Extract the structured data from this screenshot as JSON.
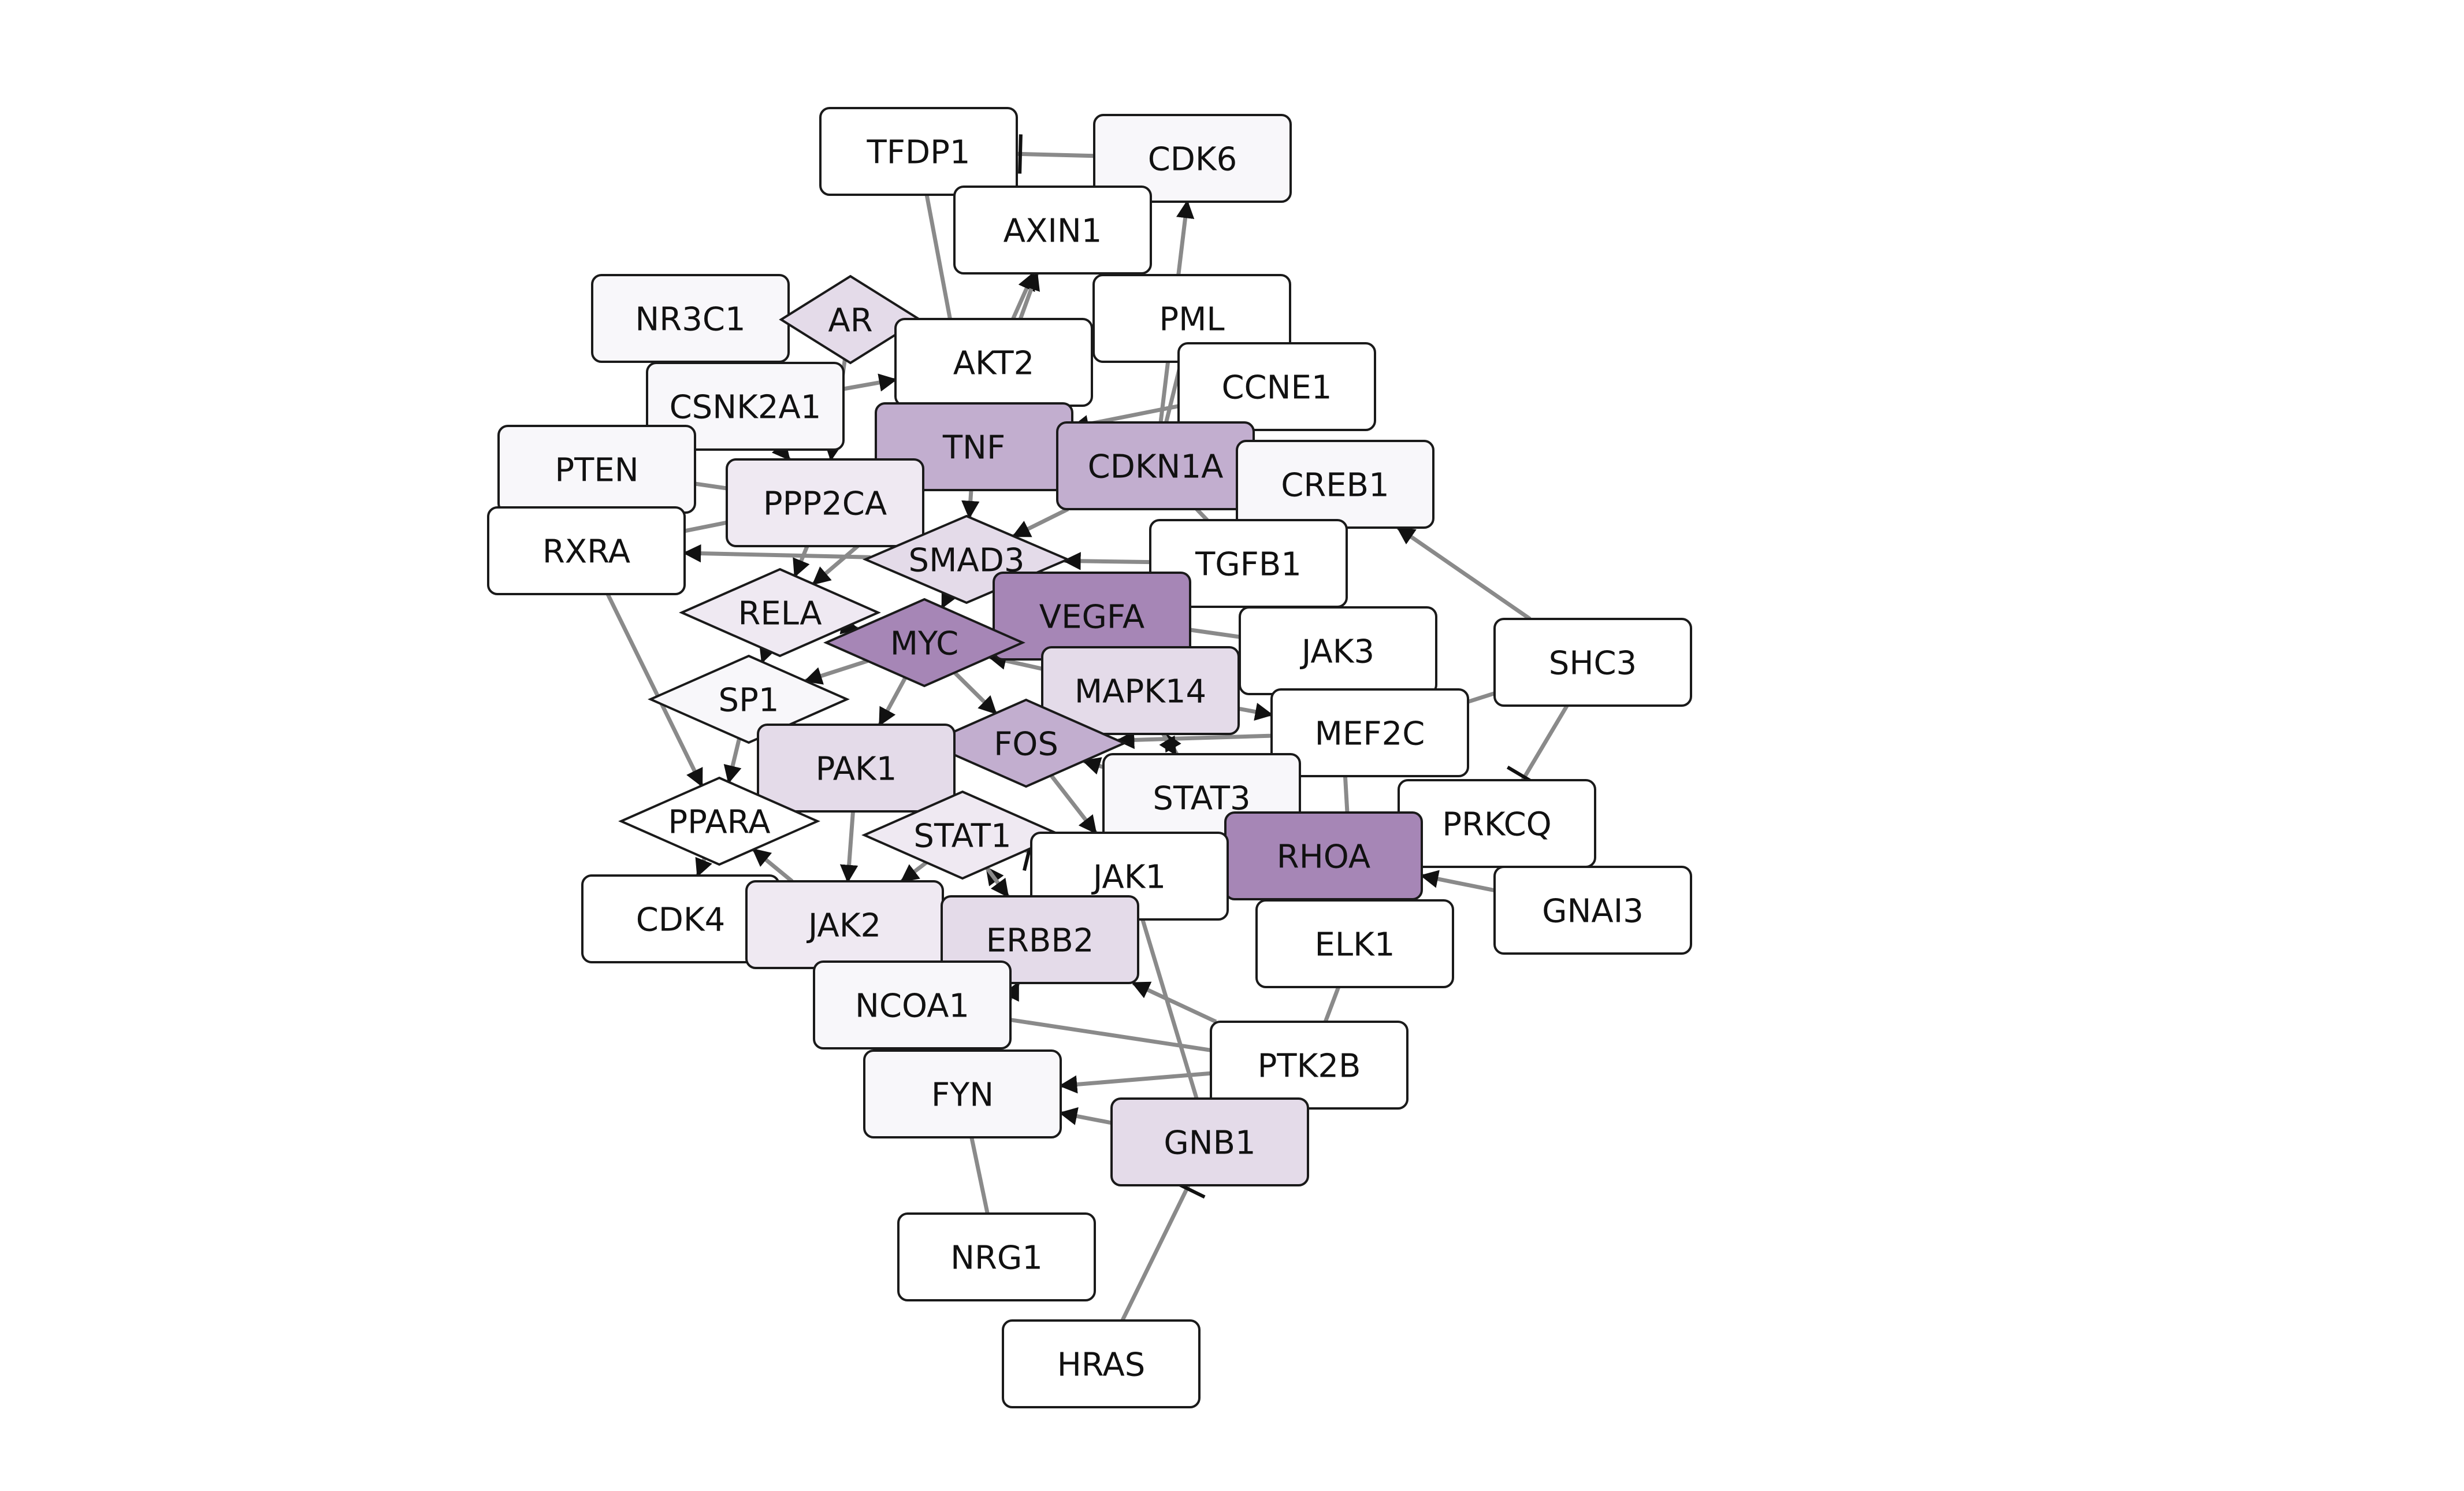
{
  "network": {
    "colors": {
      "background": "#ffffff",
      "edge": "#8a8a8a",
      "border": "#1a1a1a",
      "arrow": "#111111",
      "shade_0": "#ffffff",
      "shade_1": "#f8f7fa",
      "shade_2": "#efe9f2",
      "shade_3": "#e4dbe9",
      "shade_4": "#c2aecf",
      "shade_5": "#a686b6"
    },
    "nodes": [
      {
        "id": "TFDP1",
        "label": "TFDP1",
        "shape": "rect",
        "shade": 0
      },
      {
        "id": "CDK6",
        "label": "CDK6",
        "shape": "rect",
        "shade": 1
      },
      {
        "id": "AXIN1",
        "label": "AXIN1",
        "shape": "rect",
        "shade": 0
      },
      {
        "id": "NR3C1",
        "label": "NR3C1",
        "shape": "rect",
        "shade": 1
      },
      {
        "id": "AR",
        "label": "AR",
        "shape": "diamond",
        "shade": 3
      },
      {
        "id": "PML",
        "label": "PML",
        "shape": "rect",
        "shade": 0
      },
      {
        "id": "AKT2",
        "label": "AKT2",
        "shape": "rect",
        "shade": 0
      },
      {
        "id": "CCNE1",
        "label": "CCNE1",
        "shape": "rect",
        "shade": 0
      },
      {
        "id": "CSNK2A1",
        "label": "CSNK2A1",
        "shape": "rect",
        "shade": 1
      },
      {
        "id": "TNF",
        "label": "TNF",
        "shape": "rect",
        "shade": 4
      },
      {
        "id": "CDKN1A",
        "label": "CDKN1A",
        "shape": "rect",
        "shade": 4
      },
      {
        "id": "PTEN",
        "label": "PTEN",
        "shape": "rect",
        "shade": 1
      },
      {
        "id": "CREB1",
        "label": "CREB1",
        "shape": "rect",
        "shade": 1
      },
      {
        "id": "PPP2CA",
        "label": "PPP2CA",
        "shape": "rect",
        "shade": 2
      },
      {
        "id": "RXRA",
        "label": "RXRA",
        "shape": "rect",
        "shade": 0
      },
      {
        "id": "SMAD3",
        "label": "SMAD3",
        "shape": "diamond",
        "shade": 3
      },
      {
        "id": "TGFB1",
        "label": "TGFB1",
        "shape": "rect",
        "shade": 0
      },
      {
        "id": "RELA",
        "label": "RELA",
        "shape": "diamond",
        "shade": 2
      },
      {
        "id": "VEGFA",
        "label": "VEGFA",
        "shape": "rect",
        "shade": 5
      },
      {
        "id": "MYC",
        "label": "MYC",
        "shape": "diamond",
        "shade": 5
      },
      {
        "id": "JAK3",
        "label": "JAK3",
        "shape": "rect",
        "shade": 0
      },
      {
        "id": "SHC3",
        "label": "SHC3",
        "shape": "rect",
        "shade": 0
      },
      {
        "id": "SP1",
        "label": "SP1",
        "shape": "diamond",
        "shade": 1
      },
      {
        "id": "MAPK14",
        "label": "MAPK14",
        "shape": "rect",
        "shade": 3
      },
      {
        "id": "FOS",
        "label": "FOS",
        "shape": "diamond",
        "shade": 4
      },
      {
        "id": "MEF2C",
        "label": "MEF2C",
        "shape": "rect",
        "shade": 0
      },
      {
        "id": "PAK1",
        "label": "PAK1",
        "shape": "rect",
        "shade": 3
      },
      {
        "id": "PPARA",
        "label": "PPARA",
        "shape": "diamond",
        "shade": 0
      },
      {
        "id": "STAT3",
        "label": "STAT3",
        "shape": "rect",
        "shade": 1
      },
      {
        "id": "PRKCQ",
        "label": "PRKCQ",
        "shape": "rect",
        "shade": 0
      },
      {
        "id": "STAT1",
        "label": "STAT1",
        "shape": "diamond",
        "shade": 2
      },
      {
        "id": "RHOA",
        "label": "RHOA",
        "shape": "rect",
        "shade": 5
      },
      {
        "id": "JAK1",
        "label": "JAK1",
        "shape": "rect",
        "shade": 0
      },
      {
        "id": "CDK4",
        "label": "CDK4",
        "shape": "rect",
        "shade": 0
      },
      {
        "id": "JAK2",
        "label": "JAK2",
        "shape": "rect",
        "shade": 2
      },
      {
        "id": "ERBB2",
        "label": "ERBB2",
        "shape": "rect",
        "shade": 3
      },
      {
        "id": "GNAI3",
        "label": "GNAI3",
        "shape": "rect",
        "shade": 0
      },
      {
        "id": "ELK1",
        "label": "ELK1",
        "shape": "rect",
        "shade": 0
      },
      {
        "id": "NCOA1",
        "label": "NCOA1",
        "shape": "rect",
        "shade": 1
      },
      {
        "id": "PTK2B",
        "label": "PTK2B",
        "shape": "rect",
        "shade": 0
      },
      {
        "id": "FYN",
        "label": "FYN",
        "shape": "rect",
        "shade": 1
      },
      {
        "id": "GNB1",
        "label": "GNB1",
        "shape": "rect",
        "shade": 3
      },
      {
        "id": "NRG1",
        "label": "NRG1",
        "shape": "rect",
        "shade": 0
      },
      {
        "id": "HRAS",
        "label": "HRAS",
        "shape": "rect",
        "shade": 0
      }
    ],
    "edges": [
      {
        "source": "CDK6",
        "target": "TFDP1",
        "type": "inhibition"
      },
      {
        "source": "AXIN1",
        "target": "TFDP1",
        "type": "activation"
      },
      {
        "source": "AKT2",
        "target": "AXIN1",
        "type": "activation"
      },
      {
        "source": "PML",
        "target": "AXIN1",
        "type": "activation"
      },
      {
        "source": "CDKN1A",
        "target": "CDK6",
        "type": "activation"
      },
      {
        "source": "TNF",
        "target": "AXIN1",
        "type": "activation"
      },
      {
        "source": "AR",
        "target": "AKT2",
        "type": "activation"
      },
      {
        "source": "NR3C1",
        "target": "AR",
        "type": "line"
      },
      {
        "source": "CSNK2A1",
        "target": "AKT2",
        "type": "activation"
      },
      {
        "source": "PPP2CA",
        "target": "AKT2",
        "type": "activation"
      },
      {
        "source": "PTEN",
        "target": "PPP2CA",
        "type": "line"
      },
      {
        "source": "AKT2",
        "target": "TNF",
        "type": "line"
      },
      {
        "source": "PML",
        "target": "CDKN1A",
        "type": "line"
      },
      {
        "source": "CCNE1",
        "target": "CDKN1A",
        "type": "line"
      },
      {
        "source": "CREB1",
        "target": "CDKN1A",
        "type": "line"
      },
      {
        "source": "TNF",
        "target": "SMAD3",
        "type": "activation"
      },
      {
        "source": "CDKN1A",
        "target": "SMAD3",
        "type": "activation"
      },
      {
        "source": "TGFB1",
        "target": "SMAD3",
        "type": "activation"
      },
      {
        "source": "SMAD3",
        "target": "RXRA",
        "type": "activation"
      },
      {
        "source": "PPP2CA",
        "target": "RXRA",
        "type": "line"
      },
      {
        "source": "RELA",
        "target": "MYC",
        "type": "activation"
      },
      {
        "source": "SMAD3",
        "target": "MYC",
        "type": "activation"
      },
      {
        "source": "VEGFA",
        "target": "MYC",
        "type": "activation"
      },
      {
        "source": "MAPK14",
        "target": "MYC",
        "type": "activation"
      },
      {
        "source": "MYC",
        "target": "SP1",
        "type": "activation"
      },
      {
        "source": "JAK3",
        "target": "VEGFA",
        "type": "line"
      },
      {
        "source": "SHC3",
        "target": "CREB1",
        "type": "activation"
      },
      {
        "source": "SHC3",
        "target": "MEF2C",
        "type": "line"
      },
      {
        "source": "SHC3",
        "target": "PRKCQ",
        "type": "inhibition"
      },
      {
        "source": "MEF2C",
        "target": "FOS",
        "type": "activation"
      },
      {
        "source": "STAT3",
        "target": "FOS",
        "type": "activation"
      },
      {
        "source": "FOS",
        "target": "PAK1",
        "type": "activation"
      },
      {
        "source": "RXRA",
        "target": "PPARA",
        "type": "activation"
      },
      {
        "source": "SP1",
        "target": "PAK1",
        "type": "inhibition"
      },
      {
        "source": "PAK1",
        "target": "JAK2",
        "type": "activation"
      },
      {
        "source": "STAT1",
        "target": "JAK2",
        "type": "activation"
      },
      {
        "source": "JAK1",
        "target": "STAT1",
        "type": "inhibition"
      },
      {
        "source": "RHOA",
        "target": "STAT3",
        "type": "activation"
      },
      {
        "source": "PRKCQ",
        "target": "RHOA",
        "type": "line"
      },
      {
        "source": "GNAI3",
        "target": "RHOA",
        "type": "activation"
      },
      {
        "source": "ELK1",
        "target": "RHOA",
        "type": "line"
      },
      {
        "source": "PPARA",
        "target": "CDK4",
        "type": "activation"
      },
      {
        "source": "JAK2",
        "target": "ERBB2",
        "type": "line"
      },
      {
        "source": "PTK2B",
        "target": "ERBB2",
        "type": "activation"
      },
      {
        "source": "PTK2B",
        "target": "NCOA1",
        "type": "line"
      },
      {
        "source": "PTK2B",
        "target": "FYN",
        "type": "activation"
      },
      {
        "source": "GNB1",
        "target": "FYN",
        "type": "activation"
      },
      {
        "source": "GNB1",
        "target": "JAK1",
        "type": "line"
      },
      {
        "source": "NRG1",
        "target": "FYN",
        "type": "line"
      },
      {
        "source": "HRAS",
        "target": "GNB1",
        "type": "inhibition"
      },
      {
        "source": "PTK2B",
        "target": "ELK1",
        "type": "line"
      },
      {
        "source": "STAT3",
        "target": "MAPK14",
        "type": "activation"
      },
      {
        "source": "JAK3",
        "target": "MAPK14",
        "type": "activation"
      },
      {
        "source": "TGFB1",
        "target": "VEGFA",
        "type": "activation"
      },
      {
        "source": "RELA",
        "target": "SP1",
        "type": "activation"
      },
      {
        "source": "PAK1",
        "target": "STAT1",
        "type": "activation"
      },
      {
        "source": "ERBB2",
        "target": "STAT1",
        "type": "activation"
      },
      {
        "source": "JAK2",
        "target": "PPARA",
        "type": "activation"
      },
      {
        "source": "CSNK2A1",
        "target": "PPP2CA",
        "type": "activation"
      },
      {
        "source": "AR",
        "target": "PPP2CA",
        "type": "activation"
      },
      {
        "source": "TNF",
        "target": "RELA",
        "type": "activation"
      },
      {
        "source": "MYC",
        "target": "FOS",
        "type": "activation"
      },
      {
        "source": "VEGFA",
        "target": "STAT3",
        "type": "activation"
      },
      {
        "source": "MAPK14",
        "target": "MEF2C",
        "type": "activation"
      },
      {
        "source": "RHOA",
        "target": "ELK1",
        "type": "activation"
      },
      {
        "source": "FOS",
        "target": "JAK1",
        "type": "activation"
      },
      {
        "source": "STAT1",
        "target": "ERBB2",
        "type": "activation"
      },
      {
        "source": "NCOA1",
        "target": "JAK2",
        "type": "line"
      },
      {
        "source": "CDK4",
        "target": "JAK2",
        "type": "line"
      },
      {
        "source": "MYC",
        "target": "PAK1",
        "type": "activation"
      },
      {
        "source": "SMAD3",
        "target": "VEGFA",
        "type": "activation"
      },
      {
        "source": "PPP2CA",
        "target": "RELA",
        "type": "activation"
      },
      {
        "source": "CDKN1A",
        "target": "TGFB1",
        "type": "line"
      },
      {
        "source": "JAK1",
        "target": "STAT3",
        "type": "activation"
      },
      {
        "source": "MEF2C",
        "target": "STAT3",
        "type": "activation"
      },
      {
        "source": "AXIN1",
        "target": "CDK6",
        "type": "line"
      },
      {
        "source": "CCNE1",
        "target": "TNF",
        "type": "activation"
      },
      {
        "source": "NR3C1",
        "target": "CSNK2A1",
        "type": "line"
      },
      {
        "source": "PTEN",
        "target": "RXRA",
        "type": "line"
      },
      {
        "source": "SP1",
        "target": "PPARA",
        "type": "activation"
      },
      {
        "source": "TFDP1",
        "target": "TNF",
        "type": "line"
      },
      {
        "source": "ELK1",
        "target": "JAK3",
        "type": "line"
      },
      {
        "source": "FYN",
        "target": "ERBB2",
        "type": "activation"
      }
    ]
  }
}
